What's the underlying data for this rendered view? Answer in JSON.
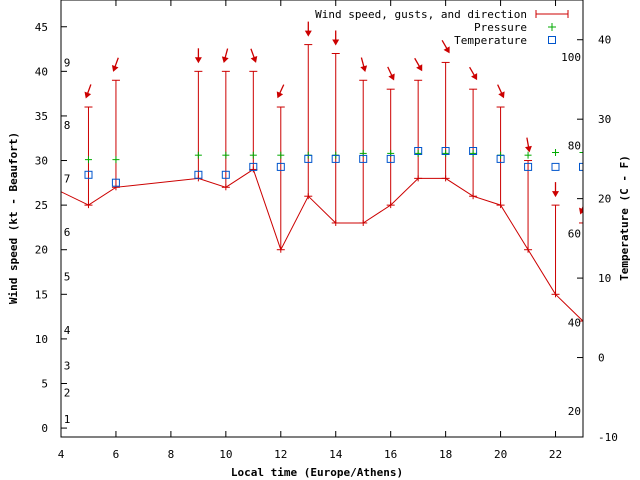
{
  "chart_data": {
    "type": "line",
    "xlabel": "Local time (Europe/Athens)",
    "ylabel": "Wind speed (kt - Beaufort)",
    "y2label": "Temperature (C - F)",
    "xlim": [
      4,
      23
    ],
    "ylim": [
      -1,
      48
    ],
    "y2lim": [
      -10,
      45
    ],
    "x_ticks": [
      4,
      6,
      8,
      10,
      12,
      14,
      16,
      18,
      20,
      22
    ],
    "y_ticks": [
      0,
      5,
      10,
      15,
      20,
      25,
      30,
      35,
      40,
      45
    ],
    "y2_ticks": [
      -10,
      0,
      10,
      20,
      30,
      40
    ],
    "beaufort_labels": [
      {
        "label": "1",
        "kt": 1
      },
      {
        "label": "2",
        "kt": 4
      },
      {
        "label": "3",
        "kt": 7
      },
      {
        "label": "4",
        "kt": 11
      },
      {
        "label": "5",
        "kt": 17
      },
      {
        "label": "6",
        "kt": 22
      },
      {
        "label": "7",
        "kt": 28
      },
      {
        "label": "8",
        "kt": 34
      },
      {
        "label": "9",
        "kt": 41
      }
    ],
    "fahrenheit_labels": [
      {
        "label": "20",
        "c": -6.7
      },
      {
        "label": "40",
        "c": 4.4
      },
      {
        "label": "60",
        "c": 15.6
      },
      {
        "label": "80",
        "c": 26.7
      },
      {
        "label": "100",
        "c": 37.8
      }
    ],
    "legend": [
      "Wind speed, gusts, and direction",
      "Pressure",
      "Temperature"
    ],
    "wind_line_x": [
      3,
      5,
      6,
      9,
      10,
      11,
      12,
      13,
      14,
      15,
      16,
      17,
      18,
      19,
      20,
      21,
      22,
      23
    ],
    "wind_line_y": [
      28,
      25,
      27,
      28,
      27,
      29,
      20,
      26,
      23,
      23,
      25,
      28,
      28,
      26,
      25,
      20,
      15,
      12
    ],
    "wind": [
      {
        "x": 5,
        "speed": 25,
        "gust": 36,
        "arrow_angle": 200
      },
      {
        "x": 6,
        "speed": 27,
        "gust": 39,
        "arrow_angle": 200
      },
      {
        "x": 9,
        "speed": 28,
        "gust": 40,
        "arrow_angle": 180
      },
      {
        "x": 10,
        "speed": 27,
        "gust": 40,
        "arrow_angle": 195
      },
      {
        "x": 11,
        "speed": 29,
        "gust": 40,
        "arrow_angle": 160
      },
      {
        "x": 12,
        "speed": 20,
        "gust": 36,
        "arrow_angle": 205
      },
      {
        "x": 13,
        "speed": 26,
        "gust": 43,
        "arrow_angle": 180
      },
      {
        "x": 14,
        "speed": 23,
        "gust": 42,
        "arrow_angle": 180
      },
      {
        "x": 15,
        "speed": 23,
        "gust": 39,
        "arrow_angle": 165
      },
      {
        "x": 16,
        "speed": 25,
        "gust": 38,
        "arrow_angle": 155
      },
      {
        "x": 17,
        "speed": 28,
        "gust": 39,
        "arrow_angle": 150
      },
      {
        "x": 18,
        "speed": 28,
        "gust": 41,
        "arrow_angle": 150
      },
      {
        "x": 19,
        "speed": 26,
        "gust": 38,
        "arrow_angle": 150
      },
      {
        "x": 20,
        "speed": 25,
        "gust": 36,
        "arrow_angle": 155
      },
      {
        "x": 21,
        "speed": 20,
        "gust": 30,
        "arrow_angle": 170
      },
      {
        "x": 22,
        "speed": 15,
        "gust": 25,
        "arrow_angle": 180
      },
      {
        "x": 23,
        "speed": 12,
        "gust": 23,
        "arrow_angle": 200
      }
    ],
    "pressure_y": [
      {
        "x": 5,
        "y": 30.1
      },
      {
        "x": 6,
        "y": 30.1
      },
      {
        "x": 9,
        "y": 30.6
      },
      {
        "x": 10,
        "y": 30.6
      },
      {
        "x": 11,
        "y": 30.6
      },
      {
        "x": 12,
        "y": 30.6
      },
      {
        "x": 13,
        "y": 30.6
      },
      {
        "x": 14,
        "y": 30.6
      },
      {
        "x": 15,
        "y": 30.8
      },
      {
        "x": 16,
        "y": 30.8
      },
      {
        "x": 17,
        "y": 30.8
      },
      {
        "x": 18,
        "y": 30.8
      },
      {
        "x": 19,
        "y": 30.8
      },
      {
        "x": 20,
        "y": 30.6
      },
      {
        "x": 21,
        "y": 30.6
      },
      {
        "x": 22,
        "y": 30.9
      },
      {
        "x": 23,
        "y": 30.9
      }
    ],
    "temperature_c": [
      {
        "x": 5,
        "c": 23
      },
      {
        "x": 6,
        "c": 22
      },
      {
        "x": 9,
        "c": 23
      },
      {
        "x": 10,
        "c": 23
      },
      {
        "x": 11,
        "c": 24
      },
      {
        "x": 12,
        "c": 24
      },
      {
        "x": 13,
        "c": 25
      },
      {
        "x": 14,
        "c": 25
      },
      {
        "x": 15,
        "c": 25
      },
      {
        "x": 16,
        "c": 25
      },
      {
        "x": 17,
        "c": 26
      },
      {
        "x": 18,
        "c": 26
      },
      {
        "x": 19,
        "c": 26
      },
      {
        "x": 20,
        "c": 25
      },
      {
        "x": 21,
        "c": 24
      },
      {
        "x": 22,
        "c": 24
      },
      {
        "x": 23,
        "c": 24
      }
    ],
    "colors": {
      "wind": "#cc0000",
      "pressure": "#00aa00",
      "temperature": "#0055cc",
      "axis": "#000000"
    }
  }
}
